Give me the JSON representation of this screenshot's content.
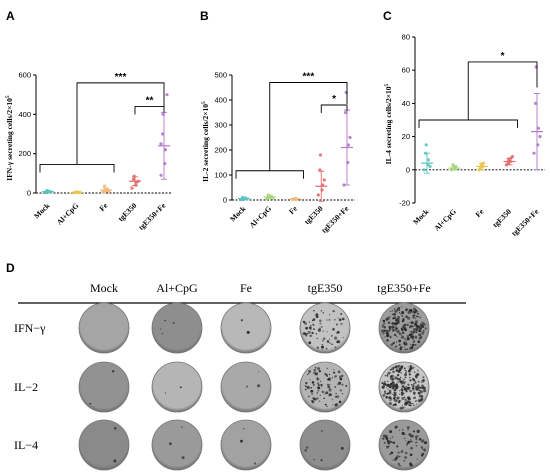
{
  "chart_data": [
    {
      "panel": "A",
      "type": "scatter",
      "ylabel": "IFN-γ secreting cells/2×10",
      "ylabel_sup": "5",
      "categories": [
        "Mock",
        "Al+CpG",
        "Fe",
        "tgE350",
        "tgE350+Fe"
      ],
      "ylim": [
        0,
        600
      ],
      "yticks": [
        0,
        200,
        400,
        600
      ],
      "colors": [
        "#5bc8c0",
        "#e8c54a",
        "#f2b878",
        "#e06a6a",
        "#b277c8"
      ],
      "points": [
        [
          2,
          5,
          8,
          10,
          12,
          6,
          4
        ],
        [
          1,
          3,
          2,
          4,
          5,
          3
        ],
        [
          5,
          10,
          20,
          35,
          15,
          8
        ],
        [
          25,
          40,
          55,
          70,
          85,
          60
        ],
        [
          90,
          150,
          220,
          300,
          400,
          500,
          250
        ]
      ],
      "mean": [
        7,
        3,
        15,
        60,
        240
      ],
      "sd": [
        4,
        2,
        10,
        22,
        170
      ],
      "significance": [
        {
          "label": "***",
          "from": [
            0,
            2
          ],
          "to": 4,
          "y": 560
        },
        {
          "label": "**",
          "from": [
            3,
            3
          ],
          "to": 4,
          "y": 440
        }
      ]
    },
    {
      "panel": "B",
      "type": "scatter",
      "ylabel": "IL-2 secreting cells/2×10",
      "ylabel_sup": "5",
      "categories": [
        "Mock",
        "Al+CpG",
        "Fe",
        "tgE350",
        "tgE350+Fe"
      ],
      "ylim": [
        0,
        500
      ],
      "yticks": [
        0,
        100,
        200,
        300,
        400,
        500
      ],
      "colors": [
        "#5bc8c0",
        "#a9d67a",
        "#f2b878",
        "#e06a6a",
        "#b277c8"
      ],
      "points": [
        [
          2,
          5,
          8,
          10,
          6,
          4
        ],
        [
          5,
          10,
          15,
          20,
          12,
          8
        ],
        [
          2,
          5,
          3,
          4,
          6
        ],
        [
          20,
          40,
          60,
          120,
          180,
          80
        ],
        [
          60,
          150,
          220,
          350,
          430,
          250
        ]
      ],
      "mean": [
        6,
        12,
        4,
        55,
        210
      ],
      "sd": [
        3,
        5,
        2,
        60,
        150
      ],
      "significance": [
        {
          "label": "***",
          "from": [
            0,
            2
          ],
          "to": 4,
          "y": 470
        },
        {
          "label": "*",
          "from": [
            3,
            3
          ],
          "to": 4,
          "y": 380
        }
      ]
    },
    {
      "panel": "C",
      "type": "scatter",
      "ylabel": "IL-4 secreting cells/2×10",
      "ylabel_sup": "5",
      "categories": [
        "Mock",
        "Al+CpG",
        "Fe",
        "tgE350",
        "tgE350+Fe"
      ],
      "ylim": [
        -20,
        80
      ],
      "yticks": [
        -20,
        0,
        20,
        40,
        60,
        80
      ],
      "colors": [
        "#5bc8c0",
        "#a9d67a",
        "#e8c54a",
        "#e06a6a",
        "#b277c8"
      ],
      "points": [
        [
          0,
          3,
          6,
          10,
          15,
          2
        ],
        [
          0,
          1,
          2,
          3,
          1
        ],
        [
          0,
          2,
          4,
          1,
          3
        ],
        [
          3,
          5,
          7,
          4,
          6,
          8
        ],
        [
          10,
          15,
          25,
          40,
          62,
          20
        ]
      ],
      "mean": [
        4,
        1,
        2,
        5,
        23
      ],
      "sd": [
        6,
        1,
        2,
        2,
        23
      ],
      "significance": [
        {
          "label": "*",
          "from": [
            0,
            3
          ],
          "to": 4,
          "y": 65
        }
      ]
    }
  ],
  "panel_d": {
    "letter": "D",
    "columns": [
      "Mock",
      "Al+CpG",
      "Fe",
      "tgE350",
      "tgE350+Fe"
    ],
    "rows": [
      "IFN−γ",
      "IL−2",
      "IL−4"
    ],
    "wells": [
      [
        {
          "tone": "#a5a5a5",
          "spots": 0
        },
        {
          "tone": "#8e8e8e",
          "spots": 4
        },
        {
          "tone": "#b8b8b8",
          "spots": 2
        },
        {
          "tone": "#c2c2c2",
          "spots": 70
        },
        {
          "tone": "#9d9d9d",
          "spots": 220
        }
      ],
      [
        {
          "tone": "#929292",
          "spots": 2
        },
        {
          "tone": "#b5b5b5",
          "spots": 2
        },
        {
          "tone": "#a9a9a9",
          "spots": 3
        },
        {
          "tone": "#b4b4b4",
          "spots": 90
        },
        {
          "tone": "#c6c6c6",
          "spots": 240
        }
      ],
      [
        {
          "tone": "#8a8a8a",
          "spots": 2
        },
        {
          "tone": "#9a9a9a",
          "spots": 3
        },
        {
          "tone": "#a2a2a2",
          "spots": 3
        },
        {
          "tone": "#8e8e8e",
          "spots": 6
        },
        {
          "tone": "#9a9a9a",
          "spots": 80
        }
      ]
    ]
  }
}
